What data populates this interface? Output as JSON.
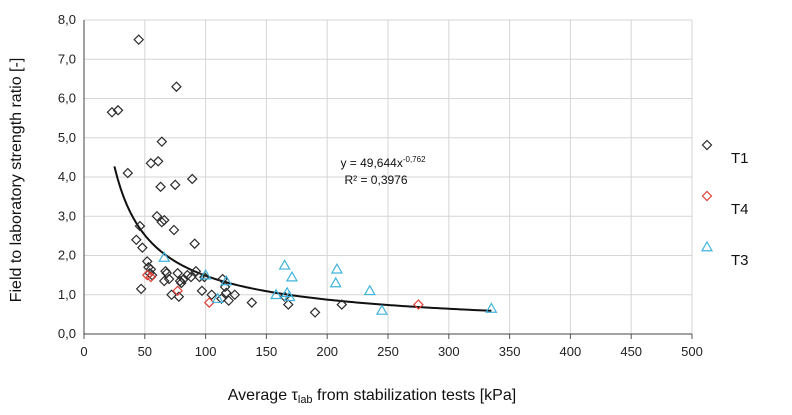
{
  "chart_data": {
    "type": "scatter",
    "xlabel_prefix": "Average ",
    "xlabel_symbol": "τ",
    "xlabel_subscript": "lab",
    "xlabel_suffix": " from stabilization tests [kPa]",
    "ylabel": "Field to laboratory strength ratio [-]",
    "xlim": [
      0,
      500
    ],
    "ylim": [
      0,
      8
    ],
    "xticks": [
      0,
      50,
      100,
      150,
      200,
      250,
      300,
      350,
      400,
      450,
      500
    ],
    "xtick_labels": [
      "0",
      "50",
      "100",
      "150",
      "200",
      "250",
      "300",
      "350",
      "400",
      "450",
      "500"
    ],
    "yticks": [
      0,
      1,
      2,
      3,
      4,
      5,
      6,
      7,
      8
    ],
    "ytick_labels": [
      "0,0",
      "1,0",
      "2,0",
      "3,0",
      "4,0",
      "5,0",
      "6,0",
      "7,0",
      "8,0"
    ],
    "grid": true,
    "legend_position": "right",
    "series": [
      {
        "name": "T1",
        "marker": "diamond",
        "color": "#2b2b2b",
        "points": [
          [
            23,
            5.65
          ],
          [
            28,
            5.7
          ],
          [
            36,
            4.1
          ],
          [
            45,
            7.5
          ],
          [
            43,
            2.4
          ],
          [
            46,
            2.75
          ],
          [
            48,
            2.2
          ],
          [
            47,
            1.15
          ],
          [
            52,
            1.85
          ],
          [
            53,
            1.7
          ],
          [
            55,
            1.65
          ],
          [
            54,
            1.55
          ],
          [
            56,
            1.5
          ],
          [
            55,
            4.35
          ],
          [
            61,
            4.4
          ],
          [
            60,
            3.0
          ],
          [
            63,
            3.75
          ],
          [
            64,
            4.9
          ],
          [
            64,
            2.85
          ],
          [
            66,
            2.9
          ],
          [
            67,
            1.6
          ],
          [
            68,
            1.55
          ],
          [
            70,
            1.4
          ],
          [
            66,
            1.35
          ],
          [
            72,
            1.0
          ],
          [
            74,
            2.65
          ],
          [
            75,
            3.8
          ],
          [
            76,
            6.3
          ],
          [
            77,
            1.55
          ],
          [
            78,
            0.95
          ],
          [
            79,
            1.35
          ],
          [
            80,
            1.3
          ],
          [
            82,
            1.4
          ],
          [
            85,
            1.5
          ],
          [
            88,
            1.45
          ],
          [
            89,
            3.95
          ],
          [
            91,
            2.3
          ],
          [
            92,
            1.6
          ],
          [
            95,
            1.45
          ],
          [
            97,
            1.1
          ],
          [
            99,
            1.45
          ],
          [
            105,
            1.0
          ],
          [
            113,
            0.9
          ],
          [
            114,
            1.4
          ],
          [
            116,
            1.2
          ],
          [
            117,
            1.05
          ],
          [
            119,
            0.85
          ],
          [
            124,
            1.0
          ],
          [
            138,
            0.8
          ],
          [
            165,
            0.95
          ],
          [
            168,
            0.75
          ],
          [
            190,
            0.55
          ],
          [
            212,
            0.75
          ]
        ]
      },
      {
        "name": "T4",
        "marker": "diamond",
        "color": "#e0403a",
        "points": [
          [
            52,
            1.5
          ],
          [
            55,
            1.45
          ],
          [
            77,
            1.1
          ],
          [
            103,
            0.8
          ],
          [
            275,
            0.75
          ]
        ]
      },
      {
        "name": "T3",
        "marker": "triangle",
        "color": "#3fb3dc",
        "points": [
          [
            66,
            1.95
          ],
          [
            100,
            1.5
          ],
          [
            110,
            0.9
          ],
          [
            117,
            1.35
          ],
          [
            158,
            1.0
          ],
          [
            165,
            1.75
          ],
          [
            167,
            1.05
          ],
          [
            169,
            0.95
          ],
          [
            171,
            1.45
          ],
          [
            207,
            1.3
          ],
          [
            208,
            1.65
          ],
          [
            235,
            1.1
          ],
          [
            245,
            0.6
          ],
          [
            335,
            0.65
          ]
        ]
      }
    ],
    "trendline": {
      "type": "power",
      "coefficient": 49.644,
      "exponent": -0.762,
      "x_range": [
        25,
        335
      ],
      "equation_base": "y = 49,644x",
      "equation_exponent": "-0,762",
      "r2_text": "R² = 0,3976"
    }
  }
}
